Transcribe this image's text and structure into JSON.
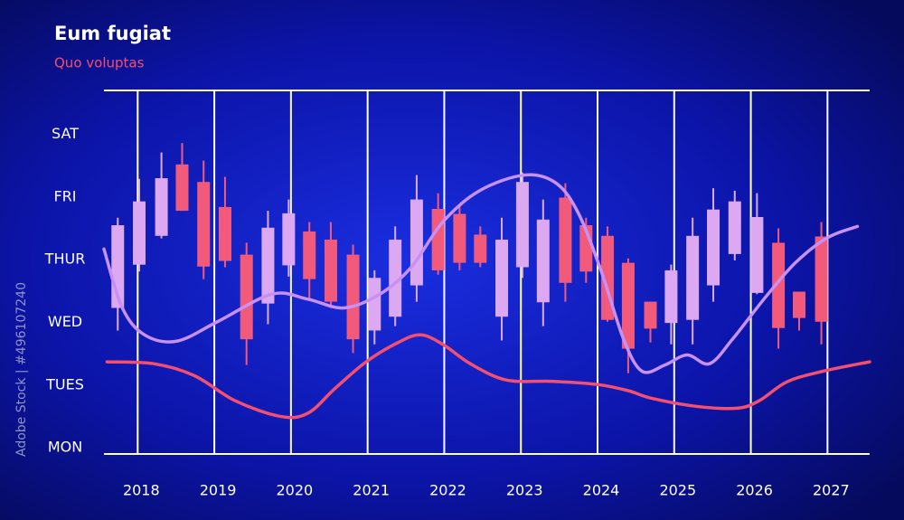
{
  "chart_data": {
    "type": "candlestick",
    "title": "Eum fugiat",
    "subtitle": "Quo voluptas",
    "watermark": "Adobe Stock | #496107240",
    "xlim": [
      2017.56,
      2027.55
    ],
    "xticks": [
      2018,
      2019,
      2020,
      2021,
      2022,
      2023,
      2024,
      2025,
      2026,
      2027
    ],
    "ylim": [
      -0.1,
      5.7
    ],
    "yticks": [
      {
        "value": 0,
        "label": "MON"
      },
      {
        "value": 1,
        "label": "TUES"
      },
      {
        "value": 2,
        "label": "WED"
      },
      {
        "value": 3,
        "label": "THUR"
      },
      {
        "value": 4,
        "label": "FRI"
      },
      {
        "value": 5,
        "label": "SAT"
      }
    ],
    "grid": true,
    "up_color": "#dca8f2",
    "down_color": "#f25a7c",
    "x": [
      2017.74,
      2018.02,
      2018.31,
      2018.58,
      2018.86,
      2019.14,
      2019.42,
      2019.7,
      2019.97,
      2020.24,
      2020.52,
      2020.81,
      2021.09,
      2021.36,
      2021.64,
      2021.92,
      2022.2,
      2022.47,
      2022.75,
      2023.02,
      2023.29,
      2023.58,
      2023.85,
      2024.13,
      2024.4,
      2024.69,
      2024.96,
      2025.24,
      2025.51,
      2025.79,
      2026.08,
      2026.36,
      2026.63,
      2026.92
    ],
    "open": [
      2.23,
      2.92,
      3.38,
      4.52,
      4.24,
      3.84,
      3.08,
      2.3,
      2.91,
      3.45,
      3.32,
      3.08,
      1.87,
      2.09,
      2.59,
      3.81,
      3.73,
      3.4,
      2.09,
      2.88,
      2.32,
      3.99,
      3.55,
      3.38,
      2.95,
      2.33,
      1.99,
      2.04,
      2.59,
      3.09,
      2.47,
      3.27,
      2.49,
      3.37
    ],
    "high": [
      3.67,
      4.29,
      4.71,
      4.86,
      4.58,
      4.32,
      3.27,
      3.78,
      3.96,
      3.6,
      3.6,
      3.24,
      2.83,
      3.53,
      4.35,
      4.06,
      3.88,
      3.53,
      3.67,
      4.39,
      3.96,
      4.22,
      3.67,
      3.53,
      3.02,
      2.33,
      2.92,
      3.67,
      4.14,
      4.1,
      4.06,
      3.5,
      2.49,
      3.6
    ],
    "low": [
      1.87,
      2.81,
      3.34,
      3.78,
      2.69,
      2.88,
      1.32,
      1.97,
      2.73,
      2.37,
      2.23,
      1.51,
      1.65,
      1.94,
      2.33,
      2.76,
      2.83,
      2.88,
      1.71,
      2.71,
      1.94,
      2.33,
      2.63,
      2.01,
      1.19,
      1.68,
      1.65,
      1.65,
      2.33,
      2.99,
      2.45,
      1.58,
      1.87,
      1.65
    ],
    "close": [
      3.55,
      3.93,
      4.3,
      3.78,
      2.89,
      2.98,
      1.73,
      3.51,
      3.74,
      2.69,
      2.33,
      1.73,
      2.71,
      3.32,
      3.96,
      2.83,
      2.95,
      2.95,
      3.32,
      4.24,
      3.64,
      2.63,
      2.81,
      2.04,
      1.58,
      1.9,
      2.83,
      3.38,
      3.8,
      3.93,
      3.68,
      1.91,
      2.07,
      2.01
    ],
    "lines": [
      {
        "color": "#c890f2",
        "x": [
          2017.56,
          2017.8,
          2018.09,
          2018.51,
          2019.04,
          2019.75,
          2020.22,
          2020.69,
          2021.16,
          2021.57,
          2021.98,
          2022.46,
          2023.05,
          2023.46,
          2023.75,
          2024.05,
          2024.34,
          2024.58,
          2024.88,
          2025.17,
          2025.46,
          2025.76,
          2026.17,
          2026.58,
          2027.0,
          2027.39
        ],
        "values": [
          3.17,
          2.23,
          1.8,
          1.7,
          2.01,
          2.45,
          2.37,
          2.23,
          2.45,
          2.88,
          3.6,
          4.1,
          4.35,
          4.22,
          3.74,
          2.81,
          1.73,
          1.22,
          1.32,
          1.48,
          1.34,
          1.73,
          2.37,
          2.95,
          3.35,
          3.53
        ]
      },
      {
        "color": "#f2506e",
        "x": [
          2017.6,
          2018.21,
          2018.74,
          2019.27,
          2019.86,
          2020.22,
          2020.57,
          2020.98,
          2021.4,
          2021.69,
          2021.98,
          2022.34,
          2022.81,
          2023.4,
          2023.99,
          2024.4,
          2024.7,
          2025.29,
          2025.82,
          2026.11,
          2026.47,
          2026.94,
          2027.55
        ],
        "values": [
          1.37,
          1.34,
          1.15,
          0.75,
          0.5,
          0.55,
          0.94,
          1.37,
          1.68,
          1.8,
          1.65,
          1.34,
          1.08,
          1.06,
          1.01,
          0.91,
          0.79,
          0.66,
          0.63,
          0.75,
          1.05,
          1.22,
          1.37
        ]
      }
    ]
  }
}
